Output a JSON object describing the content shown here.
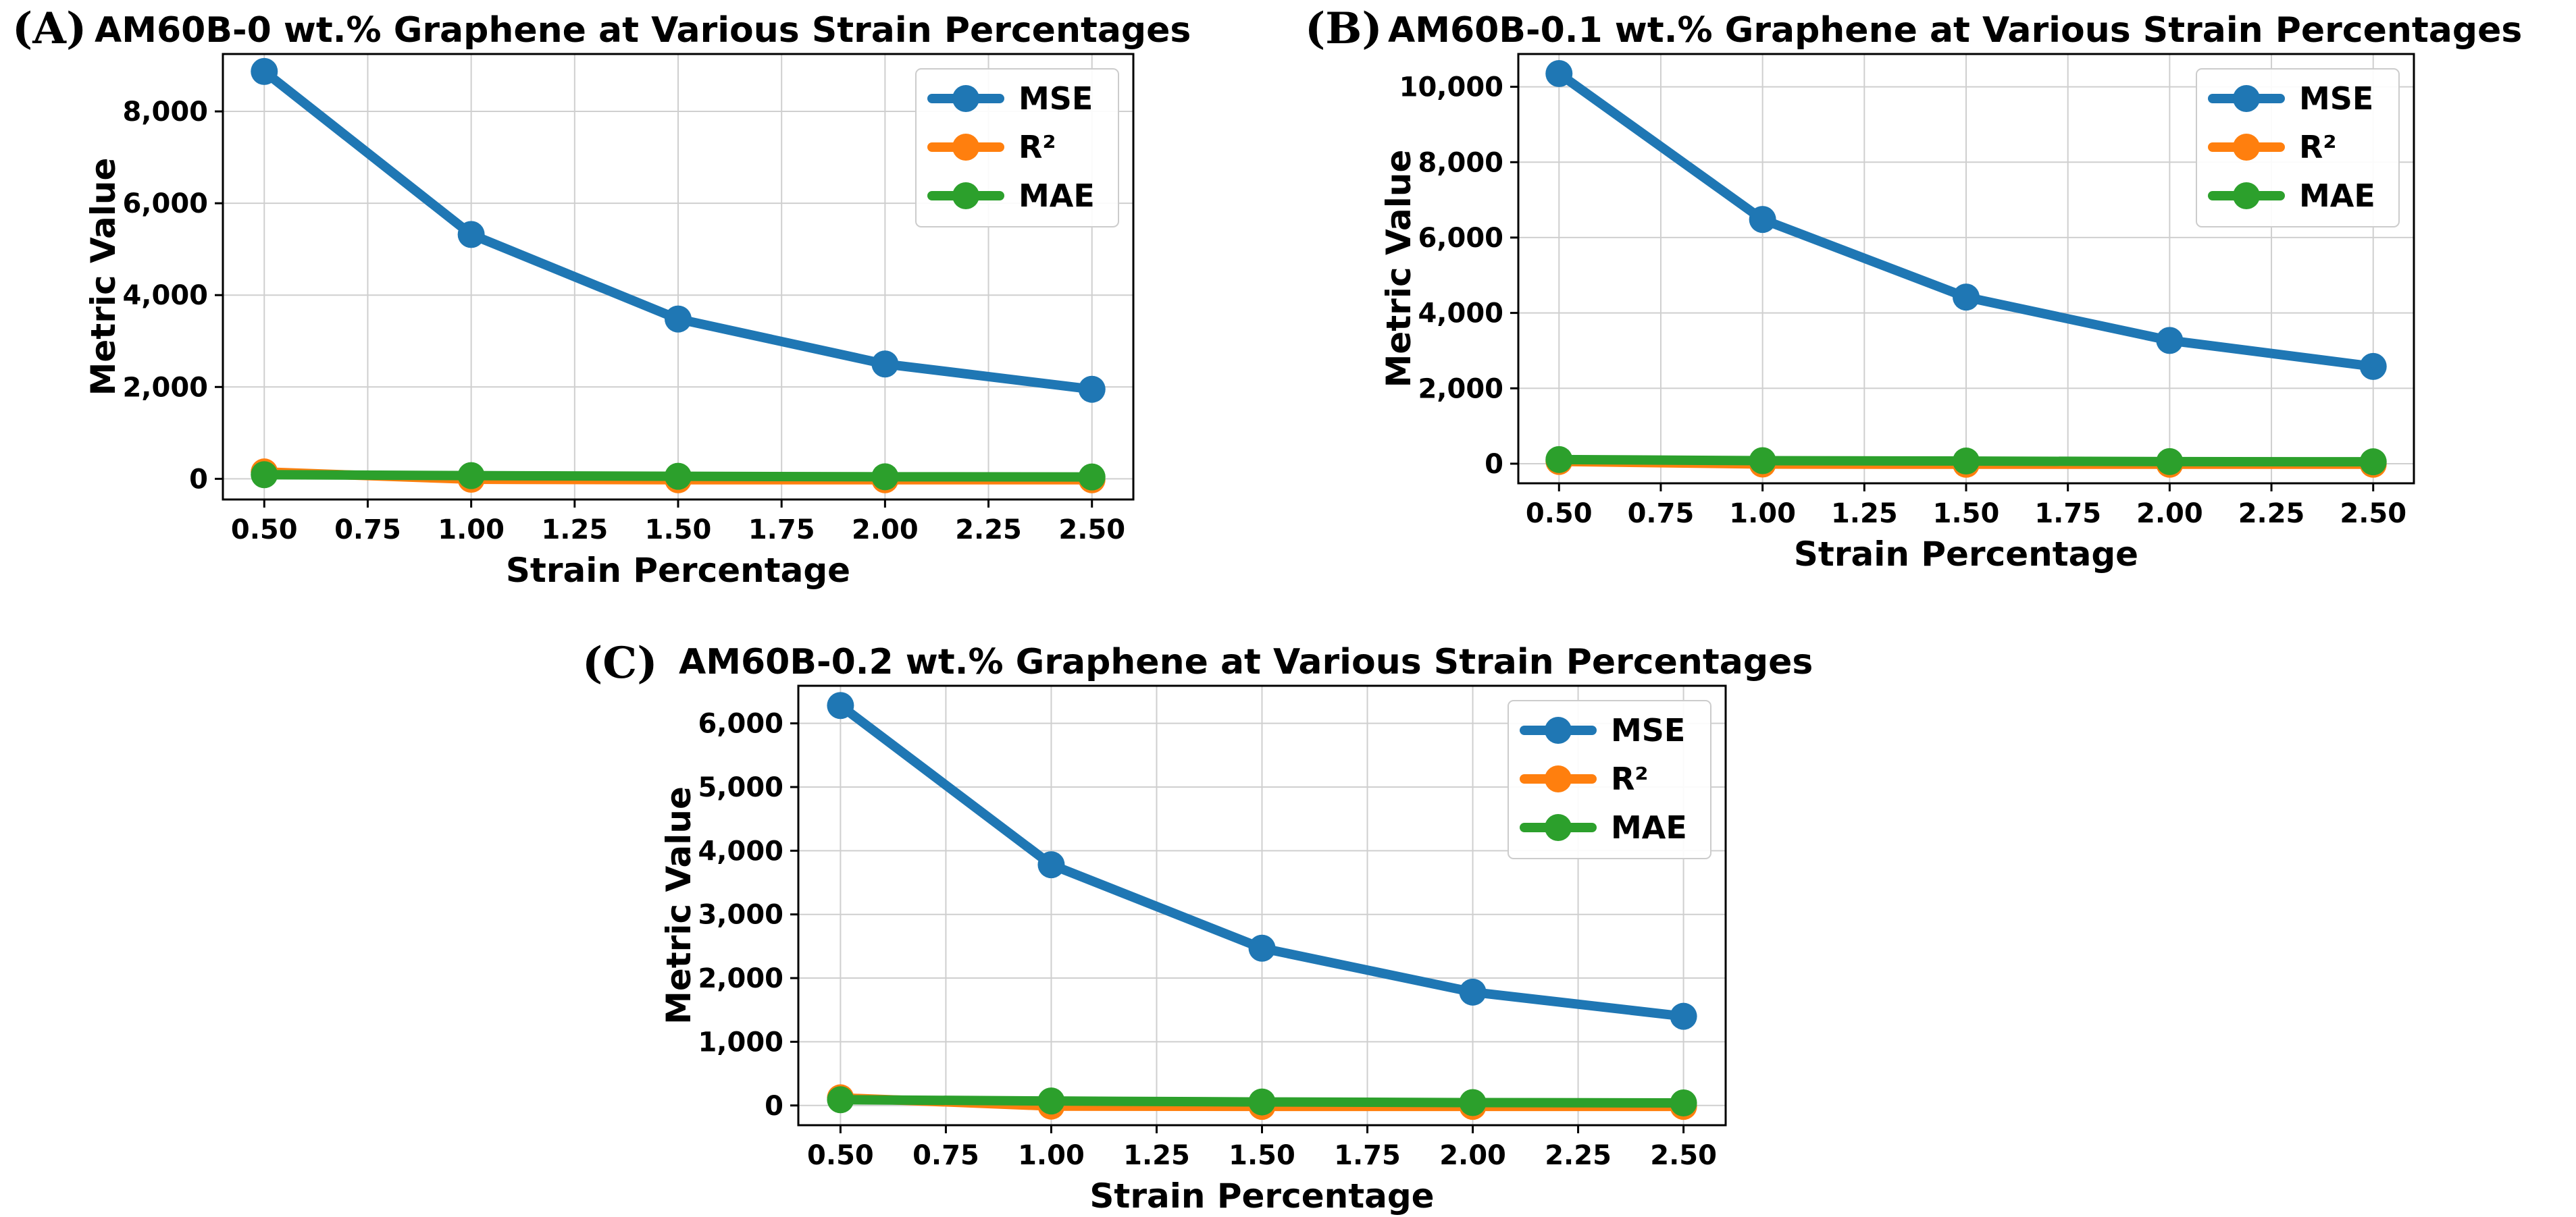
{
  "colors": {
    "MSE": "#1f77b4",
    "R2": "#ff7f0e",
    "MAE": "#2ca02c",
    "grid": "#cfcfcf"
  },
  "chart_data": [
    {
      "panel": "(A)",
      "type": "line",
      "title": "AM60B-0 wt.% Graphene at Various Strain Percentages",
      "xlabel": "Strain Percentage",
      "ylabel": "Metric Value",
      "x": [
        0.5,
        1.0,
        1.5,
        2.0,
        2.5
      ],
      "xlim": [
        0.4,
        2.6
      ],
      "ylim": [
        -450,
        9250
      ],
      "xticks": [
        0.5,
        0.75,
        1.0,
        1.25,
        1.5,
        1.75,
        2.0,
        2.25,
        2.5
      ],
      "xtick_labels": [
        "0.50",
        "0.75",
        "1.00",
        "1.25",
        "1.50",
        "1.75",
        "2.00",
        "2.25",
        "2.50"
      ],
      "yticks": [
        0,
        2000,
        4000,
        6000,
        8000
      ],
      "ytick_labels": [
        "0",
        "2,000",
        "4,000",
        "6,000",
        "8,000"
      ],
      "grid": true,
      "legend": "upper right",
      "series": [
        {
          "name": "MSE",
          "color_key": "MSE",
          "values": [
            8870,
            5320,
            3480,
            2500,
            1950
          ]
        },
        {
          "name": "R²",
          "color_key": "R2",
          "values": [
            150,
            -10,
            -20,
            -20,
            -20
          ]
        },
        {
          "name": "MAE",
          "color_key": "MAE",
          "values": [
            90,
            70,
            55,
            45,
            40
          ]
        }
      ]
    },
    {
      "panel": "(B)",
      "type": "line",
      "title": "AM60B-0.1 wt.% Graphene at Various Strain Percentages",
      "xlabel": "Strain Percentage",
      "ylabel": "Metric Value",
      "x": [
        0.5,
        1.0,
        1.5,
        2.0,
        2.5
      ],
      "xlim": [
        0.4,
        2.6
      ],
      "ylim": [
        -520,
        10870
      ],
      "xticks": [
        0.5,
        0.75,
        1.0,
        1.25,
        1.5,
        1.75,
        2.0,
        2.25,
        2.5
      ],
      "xtick_labels": [
        "0.50",
        "0.75",
        "1.00",
        "1.25",
        "1.50",
        "1.75",
        "2.00",
        "2.25",
        "2.50"
      ],
      "yticks": [
        0,
        2000,
        4000,
        6000,
        8000,
        10000
      ],
      "ytick_labels": [
        "0",
        "2,000",
        "4,000",
        "6,000",
        "8,000",
        "10,000"
      ],
      "grid": true,
      "legend": "upper right",
      "series": [
        {
          "name": "MSE",
          "color_key": "MSE",
          "values": [
            10350,
            6480,
            4420,
            3270,
            2580
          ]
        },
        {
          "name": "R²",
          "color_key": "R2",
          "values": [
            60,
            -10,
            -15,
            -15,
            -15
          ]
        },
        {
          "name": "MAE",
          "color_key": "MAE",
          "values": [
            110,
            80,
            70,
            55,
            50
          ]
        }
      ]
    },
    {
      "panel": "(C)",
      "type": "line",
      "title": "AM60B-0.2 wt.% Graphene at Various Strain Percentages",
      "xlabel": "Strain Percentage",
      "ylabel": "Metric Value",
      "x": [
        0.5,
        1.0,
        1.5,
        2.0,
        2.5
      ],
      "xlim": [
        0.4,
        2.6
      ],
      "ylim": [
        -310,
        6590
      ],
      "xticks": [
        0.5,
        0.75,
        1.0,
        1.25,
        1.5,
        1.75,
        2.0,
        2.25,
        2.5
      ],
      "xtick_labels": [
        "0.50",
        "0.75",
        "1.00",
        "1.25",
        "1.50",
        "1.75",
        "2.00",
        "2.25",
        "2.50"
      ],
      "yticks": [
        0,
        1000,
        2000,
        3000,
        4000,
        5000,
        6000
      ],
      "ytick_labels": [
        "0",
        "1,000",
        "2,000",
        "3,000",
        "4,000",
        "5,000",
        "6,000"
      ],
      "grid": true,
      "legend": "upper right",
      "series": [
        {
          "name": "MSE",
          "color_key": "MSE",
          "values": [
            6280,
            3780,
            2470,
            1780,
            1400
          ]
        },
        {
          "name": "R²",
          "color_key": "R2",
          "values": [
            120,
            -10,
            -15,
            -15,
            -15
          ]
        },
        {
          "name": "MAE",
          "color_key": "MAE",
          "values": [
            90,
            70,
            55,
            45,
            40
          ]
        }
      ]
    }
  ]
}
